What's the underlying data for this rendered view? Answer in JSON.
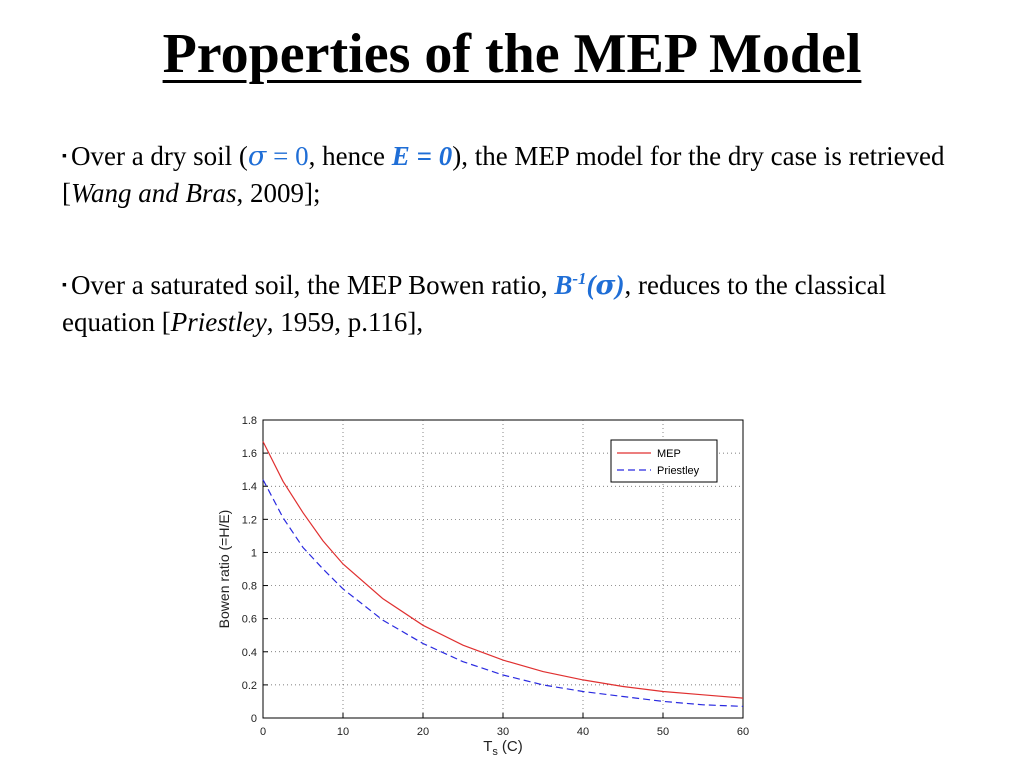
{
  "slide": {
    "title": "Properties of the MEP Model",
    "bullet1": {
      "marker": "▪",
      "t1": "Over a dry soil (",
      "sigma_sym": "σ",
      "eq_zero": " = 0",
      "t2": ", hence ",
      "E_bold": "E = 0",
      "t3": "), the MEP model for the dry case is retrieved [",
      "cite": "Wang and Bras",
      "t4": ", 2009];"
    },
    "bullet2": {
      "marker": "▪",
      "t1": "Over a saturated soil, the MEP Bowen ratio, ",
      "B": "B",
      "sup": "-1",
      "paren_open": "(",
      "sigma_sym": "σ",
      "paren_close": ")",
      "t2": ", reduces to the classical equation [",
      "cite": "Priestley",
      "t3": ", 1959, p.116],"
    }
  },
  "chart_data": {
    "type": "line",
    "xlabel": "T",
    "xlabel_sub": "s",
    "xlabel_unit": "(C)",
    "ylabel": "Bowen ratio (=H/E)",
    "xlim": [
      0,
      60
    ],
    "ylim": [
      0,
      1.8
    ],
    "xticks": [
      0,
      10,
      20,
      30,
      40,
      50,
      60
    ],
    "yticks": [
      0,
      0.2,
      0.4,
      0.6,
      0.8,
      1,
      1.2,
      1.4,
      1.6,
      1.8
    ],
    "grid": true,
    "legend_position": "top-right",
    "series": [
      {
        "name": "MEP",
        "color": "#e03030",
        "dash": "solid",
        "x": [
          0,
          2.5,
          5,
          7.5,
          10,
          15,
          20,
          25,
          30,
          35,
          40,
          45,
          50,
          55,
          60
        ],
        "y": [
          1.67,
          1.43,
          1.24,
          1.07,
          0.93,
          0.72,
          0.56,
          0.44,
          0.35,
          0.28,
          0.23,
          0.19,
          0.16,
          0.14,
          0.12
        ]
      },
      {
        "name": "Priestley",
        "color": "#2a2ae0",
        "dash": "dashed",
        "x": [
          0,
          2.5,
          5,
          7.5,
          10,
          15,
          20,
          25,
          30,
          35,
          40,
          45,
          50,
          55,
          60
        ],
        "y": [
          1.44,
          1.21,
          1.03,
          0.9,
          0.78,
          0.59,
          0.45,
          0.34,
          0.26,
          0.2,
          0.16,
          0.13,
          0.1,
          0.08,
          0.07
        ]
      }
    ]
  }
}
